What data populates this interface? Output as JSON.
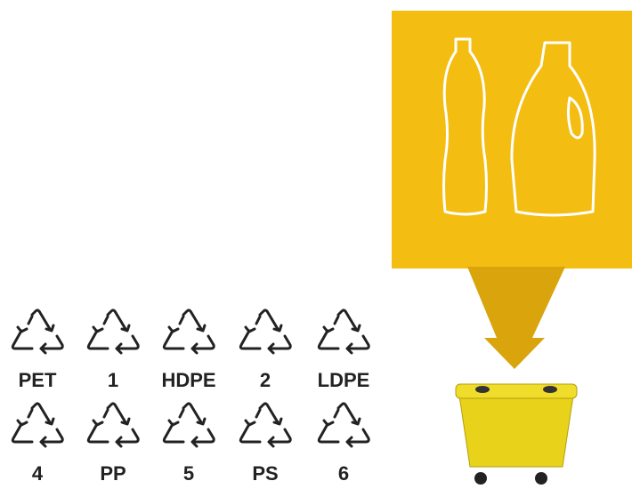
{
  "symbols": [
    {
      "label": "PET"
    },
    {
      "label": "1"
    },
    {
      "label": "HDPE"
    },
    {
      "label": "2"
    },
    {
      "label": "LDPE"
    },
    {
      "label": "4"
    },
    {
      "label": "PP"
    },
    {
      "label": "5"
    },
    {
      "label": "PS"
    },
    {
      "label": "6"
    }
  ]
}
